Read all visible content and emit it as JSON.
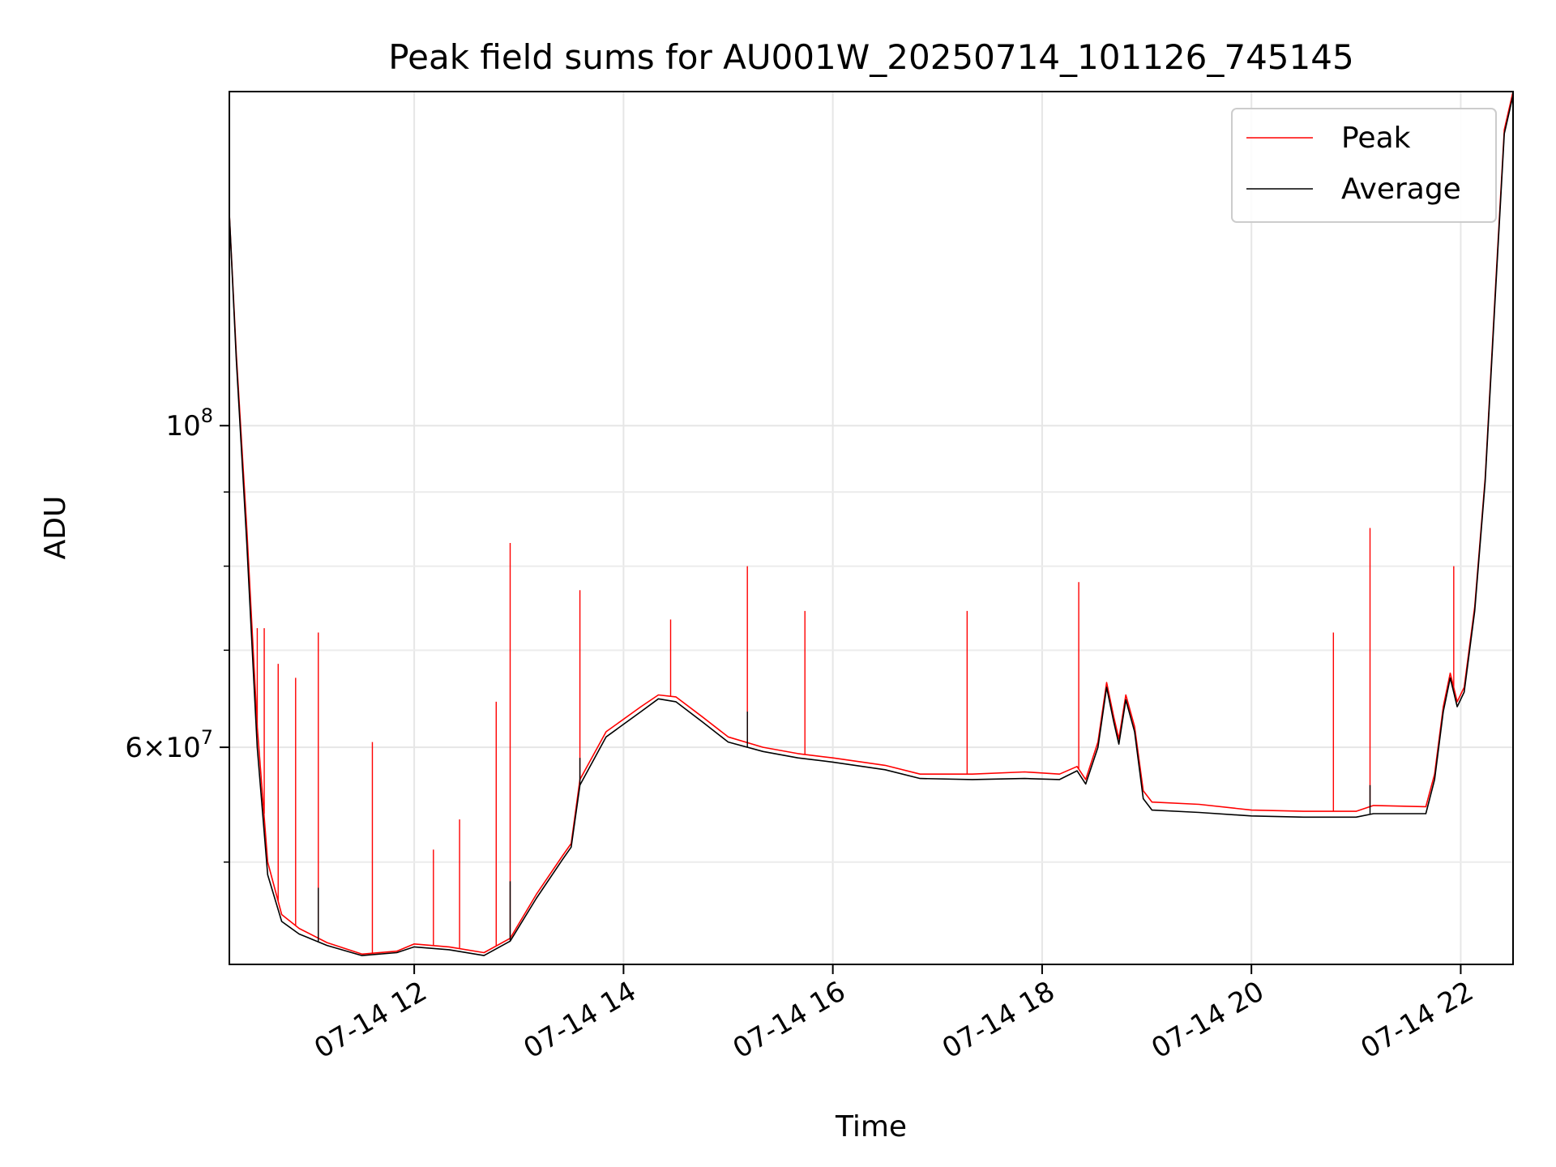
{
  "chart_data": {
    "type": "line",
    "title": "Peak field sums for AU001W_20250714_101126_745145",
    "xlabel": "Time",
    "ylabel": "ADU",
    "yscale": "log",
    "xlim": [
      "07-14 10:14",
      "07-14 22:30"
    ],
    "ylim": [
      42500000,
      170000000
    ],
    "x_ticks": [
      "07-14 12",
      "07-14 14",
      "07-14 16",
      "07-14 18",
      "07-14 20",
      "07-14 22"
    ],
    "y_ticks": [
      {
        "value": 100000000,
        "label": "10",
        "sup": "8"
      },
      {
        "value": 60000000,
        "label": "6×10",
        "sup": "7"
      }
    ],
    "y_minor_ticks": [
      50000000,
      70000000,
      80000000,
      90000000
    ],
    "grid": true,
    "legend": {
      "position": "top-right"
    },
    "series": [
      {
        "name": "Peak",
        "color": "#ff0000",
        "points": [
          [
            "07-14 10:14",
            140000000
          ],
          [
            "07-14 10:18",
            112000000
          ],
          [
            "07-14 10:24",
            85000000
          ],
          [
            "07-14 10:30",
            62000000
          ],
          [
            "07-14 10:36",
            50000000
          ],
          [
            "07-14 10:44",
            46000000
          ],
          [
            "07-14 10:54",
            45000000
          ],
          [
            "07-14 11:10",
            44000000
          ],
          [
            "07-14 11:30",
            43200000
          ],
          [
            "07-14 11:50",
            43400000
          ],
          [
            "07-14 12:00",
            43900000
          ],
          [
            "07-14 12:20",
            43700000
          ],
          [
            "07-14 12:40",
            43300000
          ],
          [
            "07-14 12:55",
            44300000
          ],
          [
            "07-14 13:10",
            47500000
          ],
          [
            "07-14 13:25",
            50500000
          ],
          [
            "07-14 13:30",
            51500000
          ],
          [
            "07-14 13:35",
            57000000
          ],
          [
            "07-14 13:50",
            61500000
          ],
          [
            "07-14 14:10",
            64000000
          ],
          [
            "07-14 14:20",
            65200000
          ],
          [
            "07-14 14:30",
            65000000
          ],
          [
            "07-14 14:45",
            63000000
          ],
          [
            "07-14 15:00",
            61000000
          ],
          [
            "07-14 15:20",
            60000000
          ],
          [
            "07-14 15:40",
            59400000
          ],
          [
            "07-14 16:00",
            59000000
          ],
          [
            "07-14 16:30",
            58300000
          ],
          [
            "07-14 16:50",
            57500000
          ],
          [
            "07-14 17:20",
            57500000
          ],
          [
            "07-14 17:50",
            57700000
          ],
          [
            "07-14 18:10",
            57500000
          ],
          [
            "07-14 18:20",
            58200000
          ],
          [
            "07-14 18:25",
            57000000
          ],
          [
            "07-14 18:32",
            60500000
          ],
          [
            "07-14 18:37",
            66500000
          ],
          [
            "07-14 18:41",
            63000000
          ],
          [
            "07-14 18:44",
            60800000
          ],
          [
            "07-14 18:48",
            65200000
          ],
          [
            "07-14 18:53",
            62000000
          ],
          [
            "07-14 18:58",
            56000000
          ],
          [
            "07-14 19:03",
            55000000
          ],
          [
            "07-14 19:30",
            54800000
          ],
          [
            "07-14 20:00",
            54300000
          ],
          [
            "07-14 20:30",
            54200000
          ],
          [
            "07-14 21:00",
            54200000
          ],
          [
            "07-14 21:10",
            54700000
          ],
          [
            "07-14 21:40",
            54600000
          ],
          [
            "07-14 21:45",
            57500000
          ],
          [
            "07-14 21:50",
            64000000
          ],
          [
            "07-14 21:54",
            67500000
          ],
          [
            "07-14 21:58",
            64500000
          ],
          [
            "07-14 22:02",
            66000000
          ],
          [
            "07-14 22:08",
            75000000
          ],
          [
            "07-14 22:14",
            92000000
          ],
          [
            "07-14 22:20",
            125000000
          ],
          [
            "07-14 22:25",
            160000000
          ],
          [
            "07-14 22:30",
            170000000
          ]
        ],
        "spikes": [
          [
            "07-14 10:30",
            72500000
          ],
          [
            "07-14 10:34",
            72500000
          ],
          [
            "07-14 10:42",
            68500000
          ],
          [
            "07-14 10:52",
            67000000
          ],
          [
            "07-14 11:05",
            72000000
          ],
          [
            "07-14 11:36",
            60500000
          ],
          [
            "07-14 12:11",
            51000000
          ],
          [
            "07-14 12:26",
            53500000
          ],
          [
            "07-14 12:47",
            64500000
          ],
          [
            "07-14 12:55",
            83000000
          ],
          [
            "07-14 13:35",
            77000000
          ],
          [
            "07-14 14:27",
            73500000
          ],
          [
            "07-14 15:11",
            80000000
          ],
          [
            "07-14 15:44",
            74500000
          ],
          [
            "07-14 17:17",
            74500000
          ],
          [
            "07-14 18:21",
            78000000
          ],
          [
            "07-14 20:47",
            72000000
          ],
          [
            "07-14 21:08",
            85000000
          ],
          [
            "07-14 21:56",
            80000000
          ]
        ]
      },
      {
        "name": "Average",
        "color": "#000000",
        "points": [
          [
            "07-14 10:14",
            140000000
          ],
          [
            "07-14 10:18",
            111000000
          ],
          [
            "07-14 10:24",
            83000000
          ],
          [
            "07-14 10:30",
            60000000
          ],
          [
            "07-14 10:36",
            49000000
          ],
          [
            "07-14 10:44",
            45500000
          ],
          [
            "07-14 10:54",
            44600000
          ],
          [
            "07-14 11:10",
            43800000
          ],
          [
            "07-14 11:30",
            43100000
          ],
          [
            "07-14 11:50",
            43300000
          ],
          [
            "07-14 12:00",
            43700000
          ],
          [
            "07-14 12:20",
            43500000
          ],
          [
            "07-14 12:40",
            43100000
          ],
          [
            "07-14 12:55",
            44100000
          ],
          [
            "07-14 13:10",
            47200000
          ],
          [
            "07-14 13:25",
            50200000
          ],
          [
            "07-14 13:30",
            51200000
          ],
          [
            "07-14 13:35",
            56500000
          ],
          [
            "07-14 13:50",
            61000000
          ],
          [
            "07-14 14:10",
            63500000
          ],
          [
            "07-14 14:20",
            64800000
          ],
          [
            "07-14 14:30",
            64500000
          ],
          [
            "07-14 14:45",
            62500000
          ],
          [
            "07-14 15:00",
            60500000
          ],
          [
            "07-14 15:20",
            59600000
          ],
          [
            "07-14 15:40",
            59000000
          ],
          [
            "07-14 16:00",
            58600000
          ],
          [
            "07-14 16:30",
            57900000
          ],
          [
            "07-14 16:50",
            57100000
          ],
          [
            "07-14 17:20",
            57000000
          ],
          [
            "07-14 17:50",
            57100000
          ],
          [
            "07-14 18:10",
            57000000
          ],
          [
            "07-14 18:20",
            57800000
          ],
          [
            "07-14 18:25",
            56600000
          ],
          [
            "07-14 18:32",
            60000000
          ],
          [
            "07-14 18:37",
            66000000
          ],
          [
            "07-14 18:41",
            62500000
          ],
          [
            "07-14 18:44",
            60300000
          ],
          [
            "07-14 18:48",
            64700000
          ],
          [
            "07-14 18:53",
            61500000
          ],
          [
            "07-14 18:58",
            55300000
          ],
          [
            "07-14 19:03",
            54300000
          ],
          [
            "07-14 19:30",
            54100000
          ],
          [
            "07-14 20:00",
            53800000
          ],
          [
            "07-14 20:30",
            53700000
          ],
          [
            "07-14 21:00",
            53700000
          ],
          [
            "07-14 21:10",
            54000000
          ],
          [
            "07-14 21:40",
            54000000
          ],
          [
            "07-14 21:45",
            57000000
          ],
          [
            "07-14 21:50",
            63500000
          ],
          [
            "07-14 21:54",
            67000000
          ],
          [
            "07-14 21:58",
            64000000
          ],
          [
            "07-14 22:02",
            65500000
          ],
          [
            "07-14 22:08",
            74500000
          ],
          [
            "07-14 22:14",
            91500000
          ],
          [
            "07-14 22:20",
            124000000
          ],
          [
            "07-14 22:25",
            159000000
          ],
          [
            "07-14 22:30",
            169000000
          ]
        ],
        "spikes": [
          [
            "07-14 11:05",
            48000000
          ],
          [
            "07-14 12:55",
            48500000
          ],
          [
            "07-14 13:35",
            59000000
          ],
          [
            "07-14 15:11",
            63500000
          ],
          [
            "07-14 21:08",
            56500000
          ]
        ]
      }
    ]
  }
}
